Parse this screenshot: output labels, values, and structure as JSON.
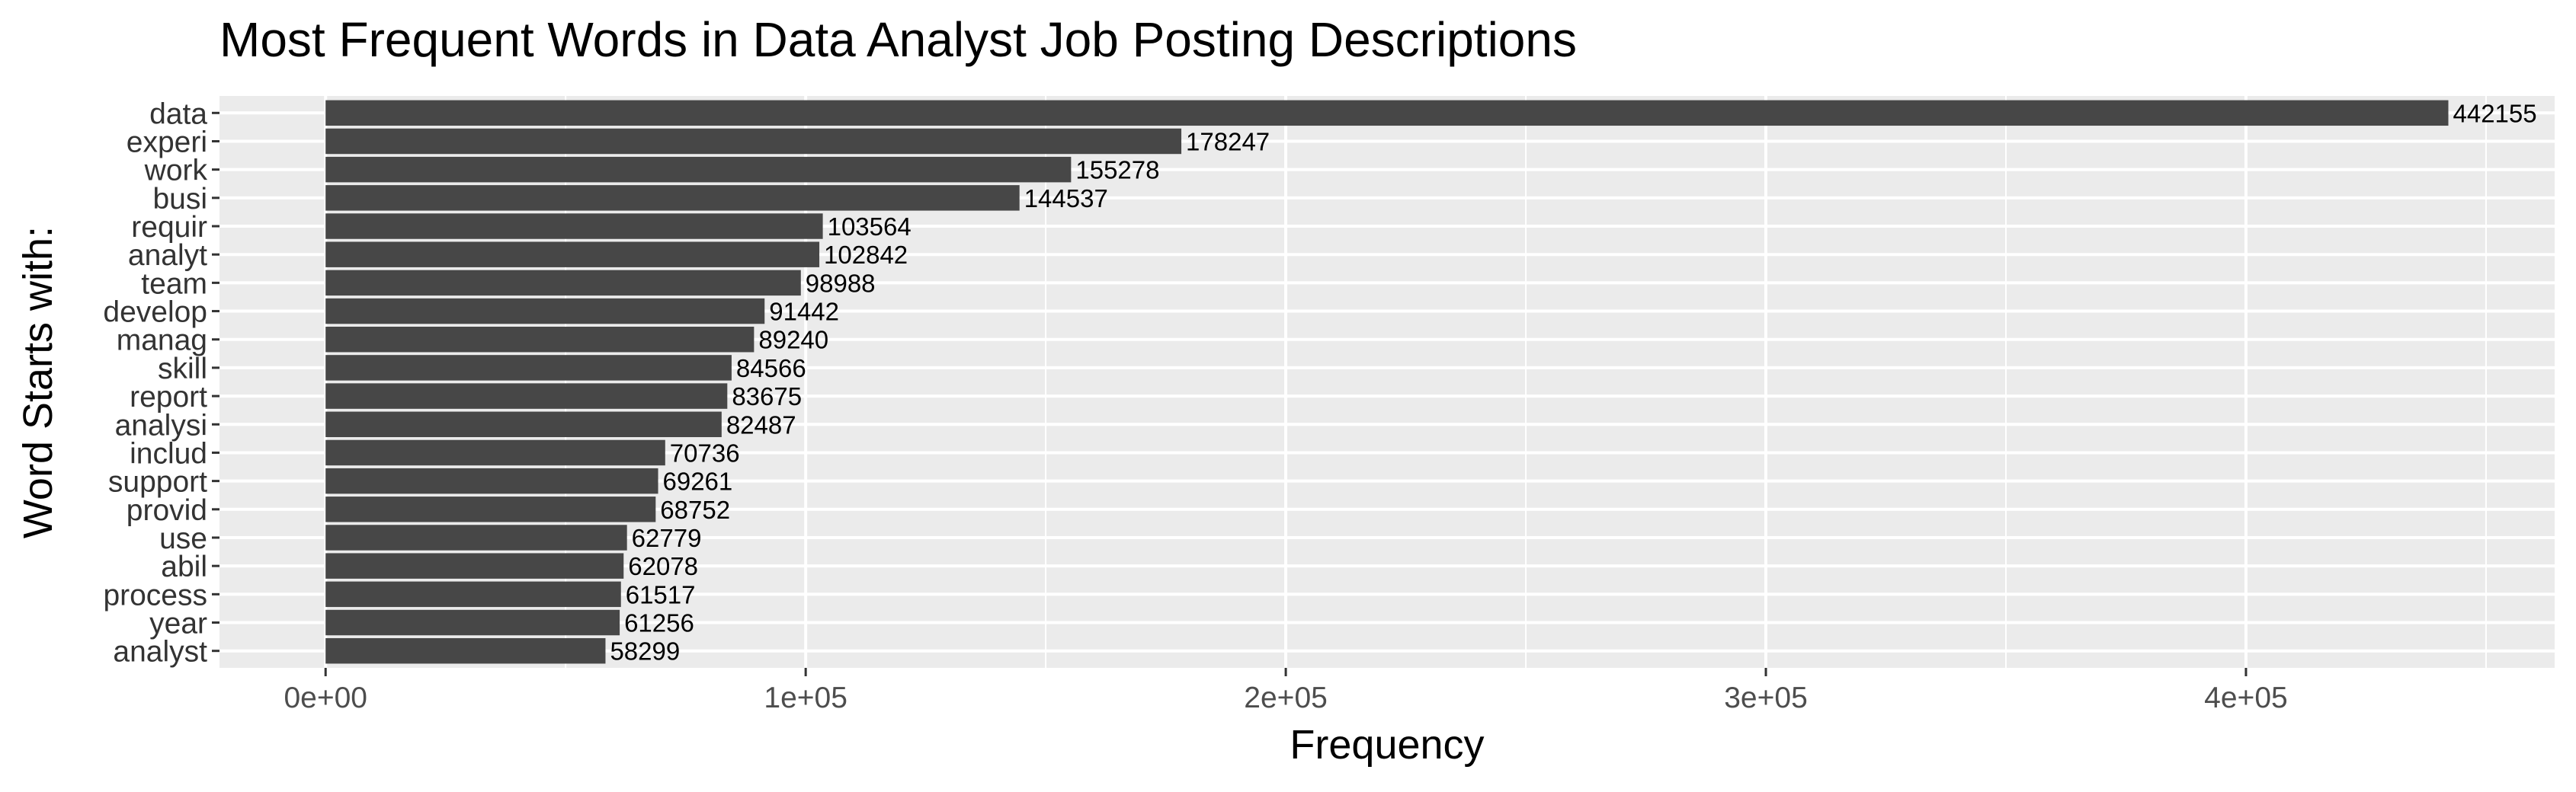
{
  "chart_data": {
    "type": "bar",
    "orientation": "horizontal",
    "title": "Most Frequent Words in Data Analyst Job Posting Descriptions",
    "xlabel": "Frequency",
    "ylabel": "Word Starts with:",
    "categories": [
      "data",
      "experi",
      "work",
      "busi",
      "requir",
      "analyt",
      "team",
      "develop",
      "manag",
      "skill",
      "report",
      "analysi",
      "includ",
      "support",
      "provid",
      "use",
      "abil",
      "process",
      "year",
      "analyst"
    ],
    "values": [
      442155,
      178247,
      155278,
      144537,
      103564,
      102842,
      98988,
      91442,
      89240,
      84566,
      83675,
      82487,
      70736,
      69261,
      68752,
      62779,
      62078,
      61517,
      61256,
      58299
    ],
    "xticks": [
      0,
      100000,
      200000,
      300000,
      400000
    ],
    "xtick_labels": [
      "0e+00",
      "1e+05",
      "2e+05",
      "3e+05",
      "4e+05"
    ],
    "xlim": [
      -22100,
      464300
    ],
    "grid": true,
    "legend": "none",
    "colors": {
      "bar": "#474747",
      "panel": "#ebebeb",
      "grid": "#ffffff"
    }
  }
}
